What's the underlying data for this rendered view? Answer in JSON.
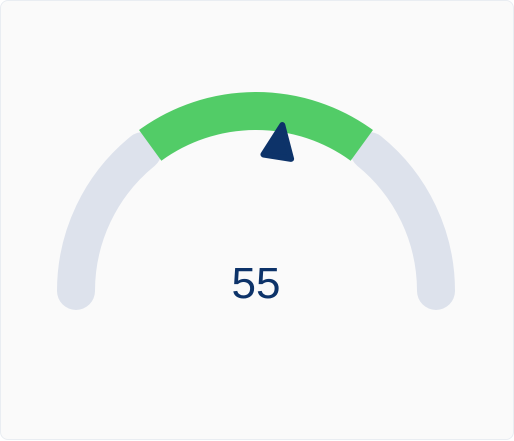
{
  "gauge": {
    "value": 55,
    "value_label": "55",
    "min": 0,
    "max": 100,
    "highlight_band": {
      "from": 30,
      "to": 70
    },
    "colors": {
      "track": "#dde2ec",
      "band": "#52cc67",
      "needle": "#0d3369",
      "value_text": "#0d3369",
      "background": "#fafafa"
    }
  }
}
